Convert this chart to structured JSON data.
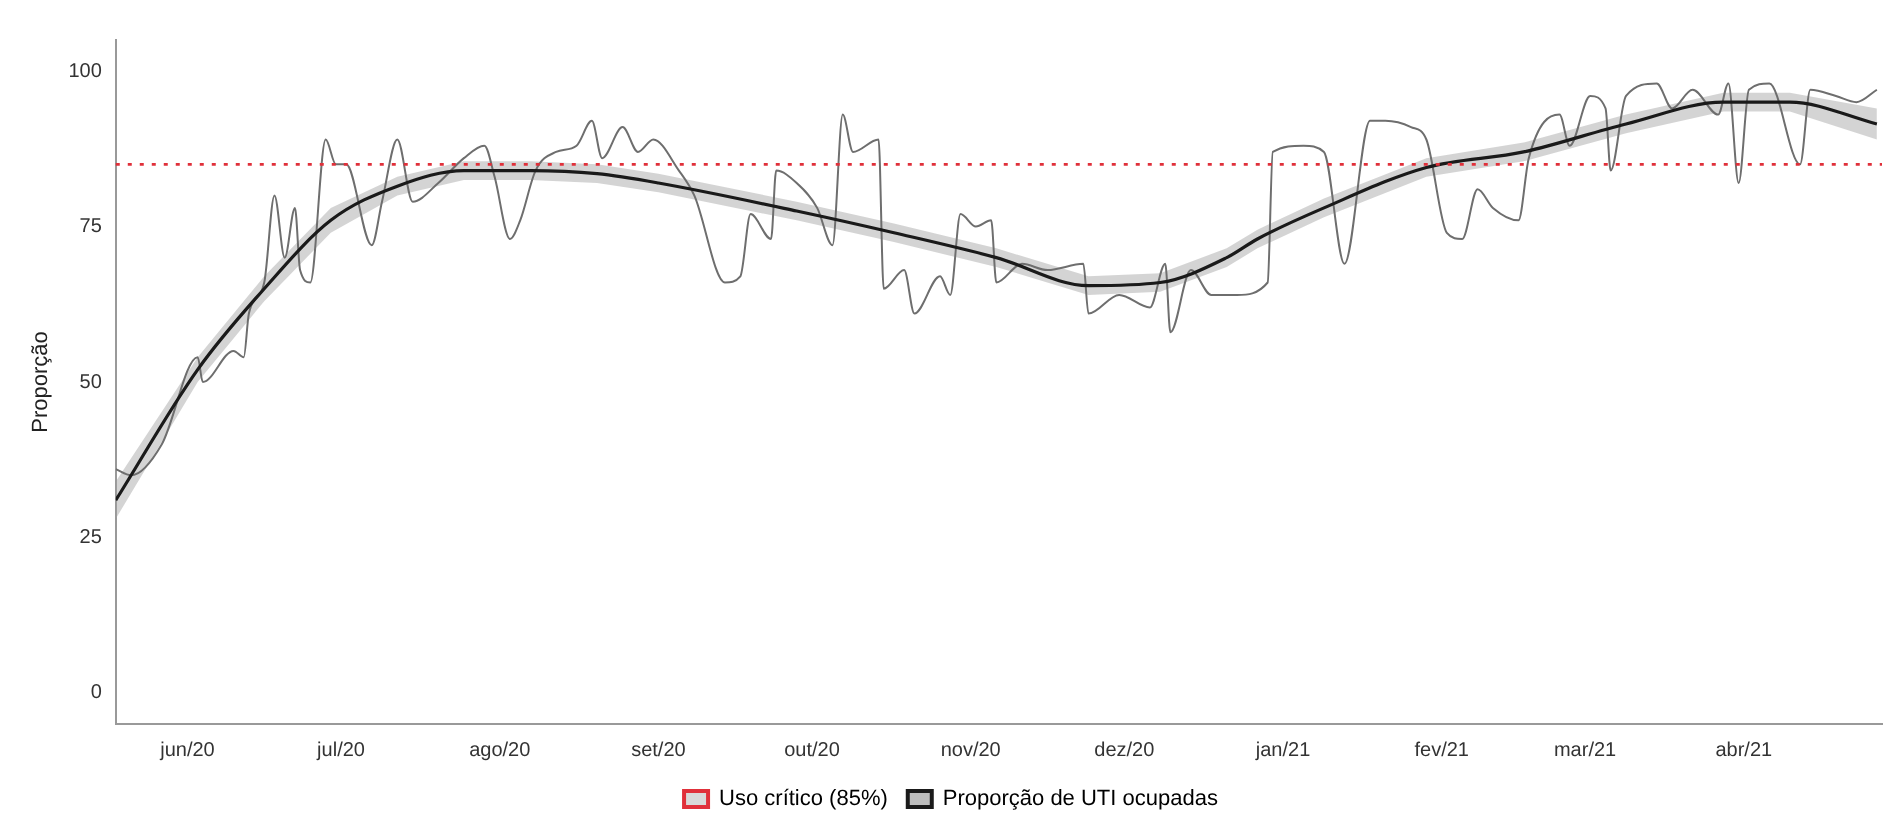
{
  "chart_data": {
    "type": "line",
    "ylabel": "Proporção",
    "xlim": [
      "2020-05-18",
      "2021-04-28"
    ],
    "ylim": [
      -5,
      105
    ],
    "yticks": [
      0,
      25,
      50,
      75,
      100
    ],
    "xticks": [
      {
        "value": "2020-06-01",
        "label": "jun/20"
      },
      {
        "value": "2020-07-01",
        "label": "jul/20"
      },
      {
        "value": "2020-08-01",
        "label": "ago/20"
      },
      {
        "value": "2020-09-01",
        "label": "set/20"
      },
      {
        "value": "2020-10-01",
        "label": "out/20"
      },
      {
        "value": "2020-11-01",
        "label": "nov/20"
      },
      {
        "value": "2020-12-01",
        "label": "dez/20"
      },
      {
        "value": "2021-01-01",
        "label": "jan/21"
      },
      {
        "value": "2021-02-01",
        "label": "fev/21"
      },
      {
        "value": "2021-03-01",
        "label": "mar/21"
      },
      {
        "value": "2021-04-01",
        "label": "abr/21"
      }
    ],
    "grid": false,
    "legend": "bottom",
    "marker": "none",
    "line_style": "solid",
    "series": [
      {
        "color": "#6e6e6e",
        "x": [
          "2020-05-18",
          "2020-05-21",
          "2020-05-27",
          "2020-06-03",
          "2020-06-04",
          "2020-06-10",
          "2020-06-12",
          "2020-06-13",
          "2020-06-16",
          "2020-06-18",
          "2020-06-20",
          "2020-06-22",
          "2020-06-23",
          "2020-06-25",
          "2020-06-28",
          "2020-06-30",
          "2020-07-02",
          "2020-07-07",
          "2020-07-09",
          "2020-07-12",
          "2020-07-15",
          "2020-07-20",
          "2020-07-25",
          "2020-07-29",
          "2020-07-31",
          "2020-08-03",
          "2020-08-05",
          "2020-08-08",
          "2020-08-12",
          "2020-08-16",
          "2020-08-19",
          "2020-08-21",
          "2020-08-25",
          "2020-08-28",
          "2020-08-31",
          "2020-09-05",
          "2020-09-08",
          "2020-09-14",
          "2020-09-17",
          "2020-09-19",
          "2020-09-23",
          "2020-09-24",
          "2020-09-28",
          "2020-10-02",
          "2020-10-05",
          "2020-10-07",
          "2020-10-09",
          "2020-10-14",
          "2020-10-15",
          "2020-10-19",
          "2020-10-21",
          "2020-10-26",
          "2020-10-28",
          "2020-10-30",
          "2020-11-02",
          "2020-11-05",
          "2020-11-06",
          "2020-11-11",
          "2020-11-16",
          "2020-11-23",
          "2020-11-24",
          "2020-11-30",
          "2020-12-06",
          "2020-12-09",
          "2020-12-10",
          "2020-12-14",
          "2020-12-18",
          "2020-12-23",
          "2020-12-29",
          "2020-12-30",
          "2021-01-05",
          "2021-01-09",
          "2021-01-13",
          "2021-01-18",
          "2021-01-21",
          "2021-01-26",
          "2021-01-29",
          "2021-02-02",
          "2021-02-05",
          "2021-02-08",
          "2021-02-11",
          "2021-02-16",
          "2021-02-18",
          "2021-02-24",
          "2021-02-26",
          "2021-03-02",
          "2021-03-05",
          "2021-03-06",
          "2021-03-09",
          "2021-03-15",
          "2021-03-18",
          "2021-03-22",
          "2021-03-27",
          "2021-03-29",
          "2021-03-31",
          "2021-04-02",
          "2021-04-06",
          "2021-04-12",
          "2021-04-14",
          "2021-04-19",
          "2021-04-23",
          "2021-04-27"
        ],
        "values": [
          36,
          35,
          40,
          54,
          50,
          55,
          54,
          61,
          66,
          80,
          70,
          78,
          68,
          66,
          89,
          85,
          85,
          72,
          79,
          89,
          79,
          82,
          86,
          88,
          83,
          73,
          76,
          84,
          87,
          88,
          92,
          86,
          91,
          87,
          89,
          84,
          80,
          66,
          67,
          77,
          73,
          84,
          82,
          78,
          72,
          93,
          87,
          89,
          65,
          68,
          61,
          67,
          64,
          77,
          75,
          76,
          66,
          69,
          68,
          69,
          61,
          64,
          62,
          69,
          58,
          68,
          64,
          64,
          66,
          87,
          88,
          87,
          69,
          92,
          92,
          91,
          89,
          74,
          73,
          81,
          78,
          76,
          86,
          93,
          88,
          96,
          94,
          84,
          96,
          98,
          94,
          97,
          93,
          98,
          82,
          97,
          98,
          85,
          97,
          96,
          95,
          97
        ]
      },
      {
        "name": "Proporção de UTI ocupadas",
        "color": "#1a1a1a",
        "x": [
          "2020-05-18",
          "2020-06-03",
          "2020-06-16",
          "2020-06-29",
          "2020-07-12",
          "2020-07-25",
          "2020-08-07",
          "2020-08-20",
          "2020-09-01",
          "2020-09-28",
          "2020-10-17",
          "2020-11-06",
          "2020-11-24",
          "2020-12-08",
          "2020-12-21",
          "2020-12-27",
          "2021-01-09",
          "2021-01-29",
          "2021-02-17",
          "2021-03-09",
          "2021-03-28",
          "2021-04-10",
          "2021-04-27"
        ],
        "values": [
          31,
          52,
          65,
          76,
          81.5,
          84,
          84,
          83.5,
          82,
          77.5,
          74,
          70,
          65.5,
          66,
          70,
          73,
          78,
          84.5,
          87,
          91.5,
          95,
          95,
          91.5
        ],
        "lower": [
          28,
          50,
          63,
          74,
          80,
          82.5,
          82.5,
          82,
          80.5,
          76,
          72.5,
          68.5,
          64,
          64.5,
          68.5,
          71.5,
          76.5,
          83,
          85.5,
          90,
          93.5,
          93.5,
          89
        ],
        "upper": [
          34,
          54,
          67,
          78,
          83,
          85.5,
          85.5,
          85,
          83.5,
          79,
          75.5,
          71.5,
          67,
          67.5,
          71.5,
          74.5,
          79.5,
          86,
          88.5,
          93,
          96.5,
          96.5,
          94
        ]
      }
    ],
    "ref_lines": [
      {
        "axis": "y",
        "value": 85,
        "label": "Uso crítico (85%)",
        "color": "#e0303a",
        "line_style": "dotted"
      }
    ]
  }
}
